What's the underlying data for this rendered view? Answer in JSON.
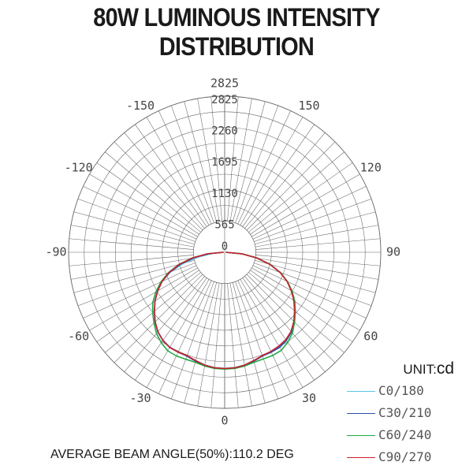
{
  "title": "80W LUMINOUS INTENSITY DISTRIBUTION",
  "unit": {
    "prefix": "UNIT:",
    "value": "cd"
  },
  "footnote": "AVERAGE BEAM ANGLE(50%):110.2 DEG",
  "colors": {
    "grid": "#666666",
    "text": "#1a1a1a"
  },
  "chart_data": {
    "type": "polar",
    "radial_max": 2825,
    "radial_ticks": [
      0,
      565,
      1130,
      1695,
      2260,
      2825
    ],
    "radial_tick_labels": [
      "0",
      "565",
      "1130",
      "1695",
      "2260",
      "2825"
    ],
    "angle_ticks": [
      0,
      30,
      60,
      90,
      120,
      150,
      180,
      -150,
      -120,
      -90,
      -60,
      -30
    ],
    "angle_tick_labels": [
      "0",
      "30",
      "60",
      "90",
      "120",
      "150",
      "2825",
      "-150",
      "-120",
      "-90",
      "-60",
      "-30"
    ],
    "angles": [
      0,
      5,
      10,
      15,
      20,
      25,
      30,
      35,
      40,
      45,
      50,
      55,
      60,
      65,
      70,
      75,
      80,
      85,
      90
    ],
    "series": [
      {
        "name": "C0/180",
        "color": "#5bc8e8",
        "right": [
          2100,
          2095,
          2070,
          2030,
          1995,
          1995,
          1990,
          1950,
          1885,
          1785,
          1665,
          1545,
          1405,
          1255,
          1075,
          855,
          595,
          315,
          20
        ],
        "left": [
          2100,
          2095,
          2070,
          2030,
          1995,
          1995,
          1990,
          1950,
          1885,
          1785,
          1665,
          1545,
          1405,
          1255,
          1045,
          775,
          475,
          215,
          20
        ]
      },
      {
        "name": "C30/210",
        "color": "#2b4fa8",
        "right": [
          2110,
          2100,
          2080,
          2040,
          2000,
          1995,
          1985,
          1945,
          1880,
          1780,
          1660,
          1540,
          1400,
          1250,
          1070,
          850,
          590,
          310,
          20
        ],
        "left": [
          2110,
          2100,
          2080,
          2040,
          2000,
          1995,
          1985,
          1945,
          1880,
          1780,
          1660,
          1540,
          1400,
          1250,
          1060,
          830,
          560,
          290,
          20
        ]
      },
      {
        "name": "C60/240",
        "color": "#22a845",
        "right": [
          2115,
          2110,
          2090,
          2060,
          2055,
          2060,
          2050,
          1990,
          1910,
          1790,
          1670,
          1550,
          1410,
          1255,
          1075,
          855,
          595,
          315,
          20
        ],
        "left": [
          2115,
          2110,
          2090,
          2060,
          2060,
          2070,
          2060,
          2000,
          1920,
          1810,
          1700,
          1590,
          1440,
          1275,
          1085,
          865,
          600,
          320,
          20
        ]
      },
      {
        "name": "C90/270",
        "color": "#c8202a",
        "right": [
          2105,
          2100,
          2075,
          2030,
          1990,
          1980,
          1960,
          1930,
          1870,
          1770,
          1650,
          1530,
          1390,
          1245,
          1065,
          845,
          585,
          305,
          20
        ],
        "left": [
          2105,
          2100,
          2075,
          2030,
          1990,
          1995,
          1990,
          1950,
          1880,
          1780,
          1660,
          1540,
          1400,
          1250,
          1070,
          850,
          590,
          310,
          20
        ]
      }
    ]
  }
}
